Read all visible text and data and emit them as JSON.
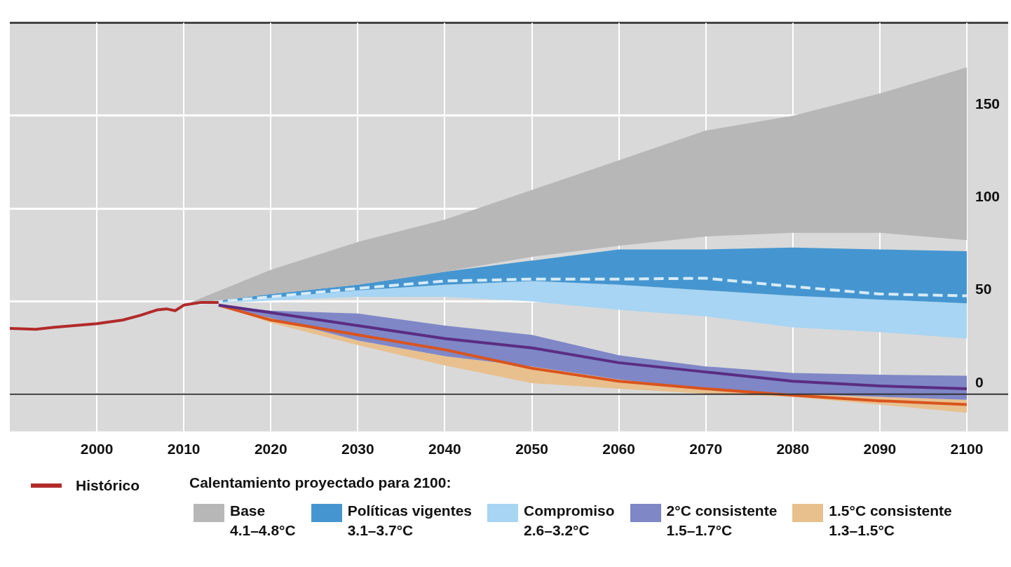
{
  "chart_data": {
    "type": "area",
    "xlim": [
      1990,
      2100
    ],
    "ylim": [
      -20,
      200
    ],
    "xticks": [
      2000,
      2010,
      2020,
      2030,
      2040,
      2050,
      2060,
      2070,
      2080,
      2090,
      2100
    ],
    "yticks": [
      0,
      50,
      100,
      150
    ],
    "grid": true,
    "legend": "bottom",
    "legend_title": "Calentamiento proyectado para 2100:",
    "annotations": [
      "4.1–4.8°C",
      "3.1–3.7°C",
      "2.6–3.2°C",
      "1.5–1.7°C",
      "1.3–1.5°C"
    ],
    "ref_lines": [
      {
        "axis": "y",
        "value": 0,
        "color": "#333333"
      }
    ],
    "series": [
      {
        "name": "Base",
        "color": "#b7b7b7",
        "values": [
          null,
          null,
          null,
          null,
          null,
          null,
          null,
          null,
          null,
          null
        ],
        "x": [
          2010,
          2020,
          2030,
          2040,
          2050,
          2060,
          2070,
          2080,
          2090,
          2100
        ],
        "lower": [
          48,
          54,
          59,
          66,
          74,
          80,
          85,
          87,
          87,
          83
        ],
        "upper": [
          48,
          67,
          82,
          94,
          110,
          126,
          142,
          150,
          162,
          176
        ]
      },
      {
        "name": "Políticas vigentes",
        "color": "#4596d0",
        "values": [
          null,
          null,
          null,
          null,
          null,
          null,
          null,
          null,
          null,
          null
        ],
        "x": [
          2010,
          2020,
          2030,
          2040,
          2050,
          2060,
          2070,
          2080,
          2090,
          2100
        ],
        "lower": [
          48,
          52,
          56,
          59,
          61,
          59,
          56,
          53,
          51,
          49
        ],
        "upper": [
          48,
          54,
          59,
          66,
          72,
          78,
          78,
          79,
          78,
          77
        ]
      },
      {
        "name": "Compromiso",
        "color": "#a7d5f3",
        "values": [
          null,
          null,
          null,
          null,
          null,
          null,
          null,
          null,
          null,
          null
        ],
        "x": [
          2010,
          2020,
          2030,
          2040,
          2050,
          2060,
          2070,
          2080,
          2090,
          2100
        ],
        "lower": [
          48,
          50.5,
          52.5,
          52.5,
          50,
          45.5,
          42,
          36,
          33.5,
          30
        ],
        "upper": [
          48,
          52,
          56,
          59,
          61,
          59,
          56,
          53,
          51,
          49
        ]
      },
      {
        "name": "2°C consistente",
        "color": "#7f87c7",
        "values": [
          null,
          null,
          null,
          null,
          null,
          null,
          null,
          null,
          null,
          null
        ],
        "x": [
          2014,
          2020,
          2030,
          2040,
          2050,
          2060,
          2070,
          2080,
          2090,
          2100
        ],
        "lower": [
          48,
          41,
          29,
          20.5,
          15,
          8,
          3,
          0.3,
          -1.4,
          -3
        ],
        "upper": [
          48,
          45,
          43.5,
          37,
          32,
          21,
          15,
          11.5,
          10.5,
          10
        ]
      },
      {
        "name": "1.5°C consistente",
        "color": "#e8c08e",
        "values": [
          null,
          null,
          null,
          null,
          null,
          null,
          null,
          null,
          null,
          null
        ],
        "x": [
          2014,
          2020,
          2030,
          2040,
          2050,
          2060,
          2070,
          2080,
          2090,
          2100
        ],
        "lower": [
          48,
          38.5,
          26.5,
          15.5,
          6,
          3,
          0.3,
          -1.4,
          -5.6,
          -10
        ],
        "upper": [
          48,
          41,
          29,
          20.5,
          15,
          8,
          3,
          0.3,
          -1.4,
          -3
        ]
      },
      {
        "name": "Histórico",
        "type": "line",
        "color": "#b22a2a",
        "x": [
          1990,
          1993,
          1995,
          2000,
          2003,
          2005,
          2007,
          2008,
          2009,
          2010,
          2012,
          2014
        ],
        "values": [
          35.5,
          35,
          36,
          38,
          40,
          42.5,
          45.5,
          46,
          45,
          48,
          49.5,
          49.5
        ]
      },
      {
        "type": "line",
        "color": "#d6ebf8",
        "line_style": "dashed",
        "x": [
          2010,
          2020,
          2030,
          2040,
          2050,
          2060,
          2070,
          2080,
          2090,
          2100
        ],
        "values": [
          48,
          52.5,
          57,
          61,
          62,
          62,
          62.5,
          58,
          54,
          53
        ]
      },
      {
        "type": "line",
        "color": "#5a2d82",
        "x": [
          2014,
          2020,
          2030,
          2040,
          2050,
          2060,
          2070,
          2080,
          2090,
          2100
        ],
        "values": [
          48,
          44,
          37,
          30,
          25,
          17,
          12,
          7,
          4.5,
          3
        ]
      },
      {
        "type": "line",
        "color": "#d9541e",
        "x": [
          2014,
          2020,
          2030,
          2040,
          2050,
          2060,
          2070,
          2080,
          2090,
          2100
        ],
        "values": [
          48,
          40,
          32,
          24,
          14,
          7,
          3,
          -0.5,
          -3.5,
          -5.5
        ]
      }
    ]
  }
}
